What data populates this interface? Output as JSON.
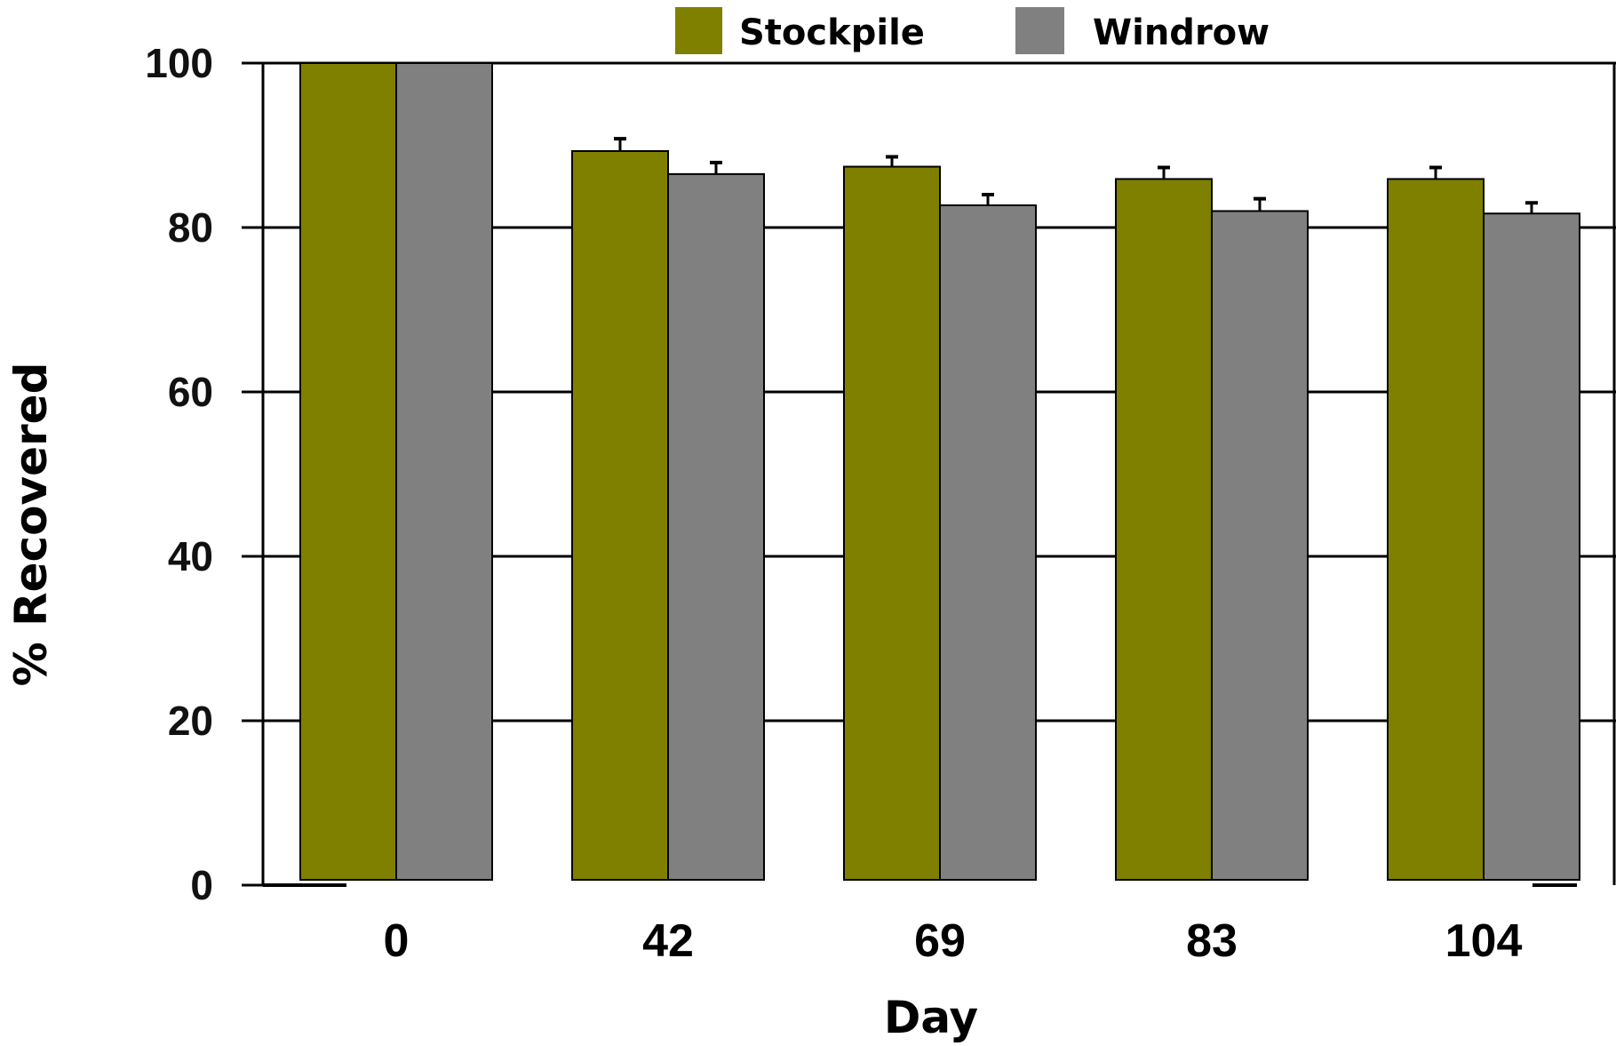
{
  "chart_data": {
    "type": "bar",
    "categories": [
      "0",
      "42",
      "69",
      "83",
      "104"
    ],
    "series": [
      {
        "name": "Stockpile",
        "color": "#808000",
        "values": [
          100,
          89.3,
          87.4,
          85.9,
          85.9
        ],
        "errors": [
          0,
          1.5,
          1.2,
          1.4,
          1.4
        ]
      },
      {
        "name": "Windrow",
        "color": "#808080",
        "values": [
          100,
          86.5,
          82.7,
          82.0,
          81.7
        ],
        "errors": [
          0,
          1.4,
          1.3,
          1.5,
          1.3
        ]
      }
    ],
    "xlabel": "Day",
    "ylabel": "% Recovered",
    "ylim": [
      0,
      100
    ],
    "yticks": [
      "0",
      "20",
      "40",
      "60",
      "80",
      "100"
    ],
    "grid": true,
    "legend_position": "top"
  }
}
